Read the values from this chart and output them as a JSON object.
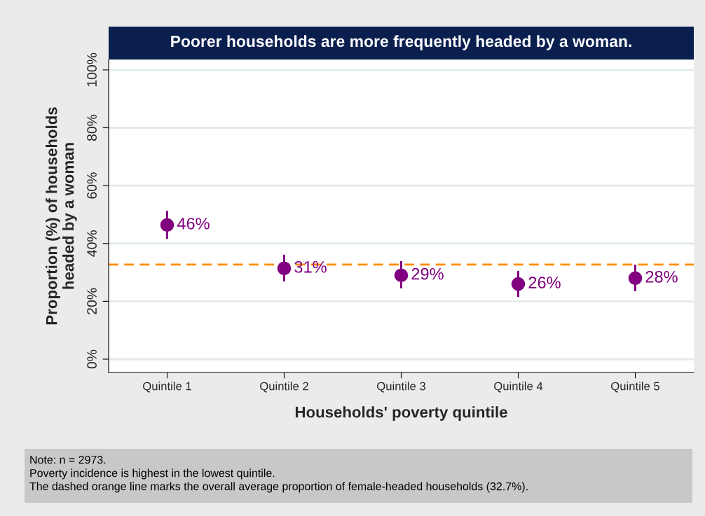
{
  "chart_data": {
    "type": "scatter",
    "title": "Poorer households are more frequently headed by a woman.",
    "xlabel": "Households' poverty quintile",
    "ylabel": "Proportion (%) of households\nheaded by a woman",
    "categories": [
      "Quintile 1",
      "Quintile 2",
      "Quintile 3",
      "Quintile 4",
      "Quintile 5"
    ],
    "series": [
      {
        "color": "#800080",
        "values": [
          46.4,
          31.4,
          29,
          26,
          28
        ],
        "errors": [
          [
            41.6,
            51.3
          ],
          [
            26.9,
            36.1
          ],
          [
            24.5,
            33.9
          ],
          [
            21.5,
            30.5
          ],
          [
            23.5,
            32.7
          ]
        ],
        "value_labels": [
          "46%",
          "31%",
          "29%",
          "26%",
          "28%"
        ]
      }
    ],
    "marker": "circle",
    "ylim": [
      -4.6,
      103.6
    ],
    "yticks": [
      {
        "value": 0,
        "label": "0%"
      },
      {
        "value": 20,
        "label": "20%"
      },
      {
        "value": 40,
        "label": "40%"
      },
      {
        "value": 60,
        "label": "60%"
      },
      {
        "value": 80,
        "label": "80%"
      },
      {
        "value": 100,
        "label": "100%"
      }
    ],
    "grid": "y",
    "legend": false,
    "ref_lines": [
      {
        "axis": "y",
        "value": 32.7,
        "color": "#ff8c00",
        "line_style": "dashed"
      }
    ],
    "annotations": [
      "Note: n = 2973.",
      "Poverty incidence is highest in the lowest quintile.",
      "The dashed orange line marks the overall average proportion of female-headed households (32.7%)."
    ]
  }
}
